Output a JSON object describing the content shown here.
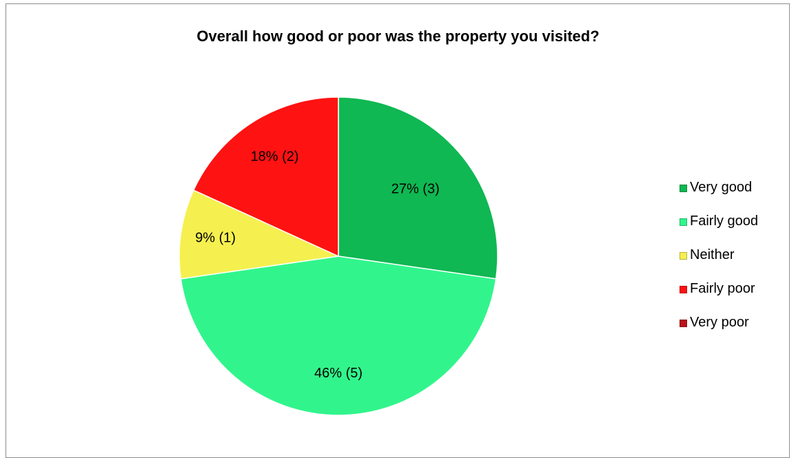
{
  "chart_data": {
    "type": "pie",
    "title": "Overall how good or poor was the property you visited?",
    "categories": [
      "Very good",
      "Fairly good",
      "Neither",
      "Fairly poor",
      "Very poor"
    ],
    "values": [
      3,
      5,
      1,
      2,
      0
    ],
    "percentages": [
      27,
      46,
      9,
      18,
      0
    ],
    "data_labels": [
      "27% (3)",
      "46% (5)",
      "9% (1)",
      "18% (2)",
      ""
    ],
    "colors": [
      "#0fb852",
      "#31f58c",
      "#f5f04f",
      "#ff1212",
      "#b8141b"
    ],
    "legend": {
      "placement": "right",
      "entries": [
        "Very good",
        "Fairly good",
        "Neither",
        "Fairly poor",
        "Very poor"
      ]
    },
    "start": "12 o'clock",
    "direction": "clockwise"
  }
}
